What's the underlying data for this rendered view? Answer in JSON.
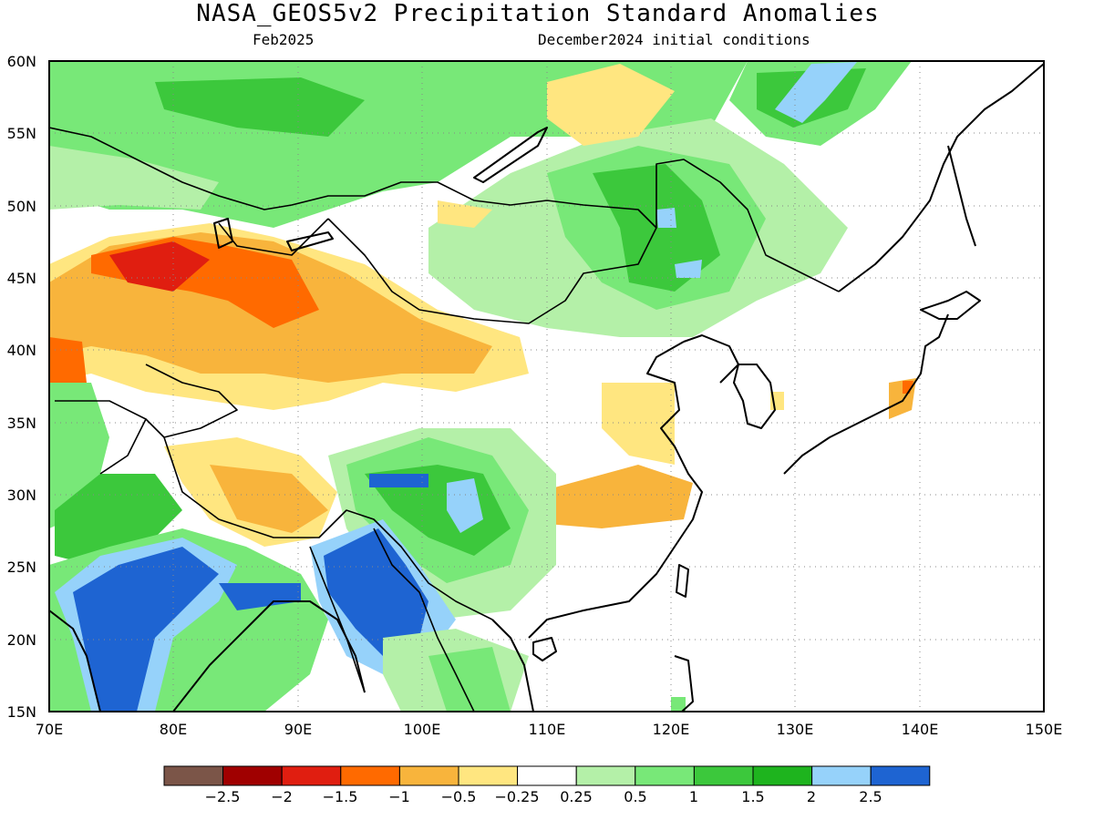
{
  "title": "NASA_GEOS5v2 Precipitation Standard Anomalies",
  "subtitle_left": "Feb2025",
  "subtitle_right": "December2024 initial conditions",
  "map": {
    "lon_range": [
      70,
      150
    ],
    "lat_range": [
      15,
      60
    ],
    "lon_ticks": [
      "70E",
      "80E",
      "90E",
      "100E",
      "110E",
      "120E",
      "130E",
      "140E",
      "150E"
    ],
    "lat_ticks": [
      "60N",
      "55N",
      "50N",
      "45N",
      "40N",
      "35N",
      "30N",
      "25N",
      "20N",
      "15N"
    ],
    "gridlines": "dotted"
  },
  "colorbar": {
    "colors": [
      "#7b5548",
      "#a00000",
      "#e01e10",
      "#ff6a00",
      "#f8b43c",
      "#ffe680",
      "#ffffff",
      "#b4f0a8",
      "#78e878",
      "#3cc83c",
      "#1eb41e",
      "#96d2fa",
      "#1e64d2"
    ],
    "labels": [
      "−2.5",
      "−2",
      "−1.5",
      "−1",
      "−0.5",
      "−0.25",
      "0.25",
      "0.5",
      "1",
      "1.5",
      "2",
      "2.5"
    ]
  }
}
